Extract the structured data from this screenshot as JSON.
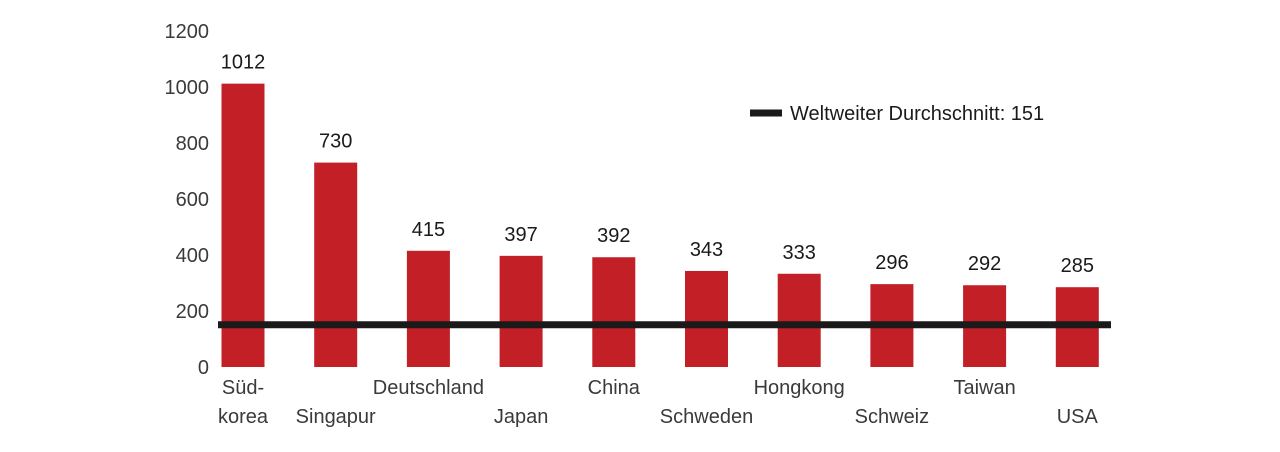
{
  "chart_data": {
    "type": "bar",
    "title": "",
    "xlabel": "",
    "ylabel": "",
    "ylim": [
      0,
      1200
    ],
    "yticks": [
      0,
      200,
      400,
      600,
      800,
      1000,
      1200
    ],
    "ytick_labels": [
      "0",
      "200",
      "400",
      "600",
      "800",
      "1000",
      "1200"
    ],
    "categories": [
      "Süd-korea",
      "Singapur",
      "Deutschland",
      "Japan",
      "China",
      "Schweden",
      "Hongkong",
      "Schweiz",
      "Taiwan",
      "USA"
    ],
    "category_label_lines": [
      [
        "Süd-",
        "korea"
      ],
      [
        "",
        "Singapur"
      ],
      [
        "Deutschland",
        ""
      ],
      [
        "",
        "Japan"
      ],
      [
        "China",
        ""
      ],
      [
        "",
        "Schweden"
      ],
      [
        "Hongkong",
        ""
      ],
      [
        "",
        "Schweiz"
      ],
      [
        "Taiwan",
        ""
      ],
      [
        "",
        "USA"
      ]
    ],
    "values": [
      1012,
      730,
      415,
      397,
      392,
      343,
      333,
      296,
      292,
      285
    ],
    "value_labels": [
      "1012",
      "730",
      "415",
      "397",
      "392",
      "343",
      "333",
      "296",
      "292",
      "285"
    ],
    "reference_line": {
      "label": "Weltweiter Durchschnitt: 151",
      "value": 151
    },
    "legend_position": "top-right",
    "grid": false,
    "colors": {
      "bar": "#c21f26",
      "reference_line": "#1a1a1a"
    }
  }
}
